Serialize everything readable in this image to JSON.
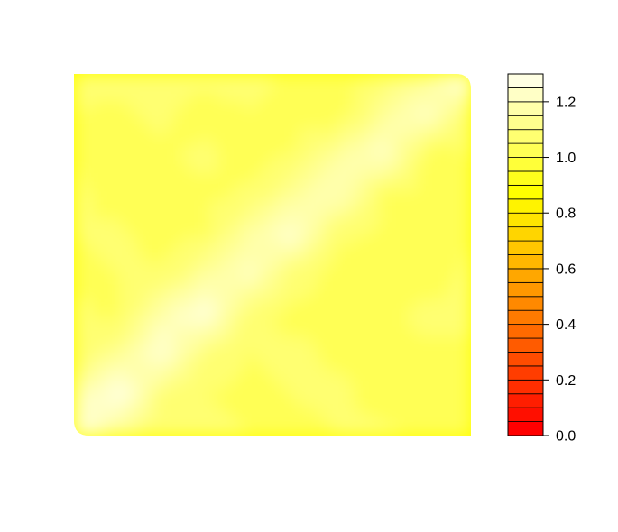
{
  "chart_data": {
    "type": "heatmap",
    "plot_style": "filled-contour",
    "title": "",
    "xlabel": "",
    "ylabel": "",
    "axes_shown": false,
    "grid": false,
    "legend": "right",
    "field": {
      "description_rows": "rows listed top to bottom, columns left to right",
      "z": [
        [
          1.06,
          1.07,
          1.05,
          1.07,
          1.06,
          1.04,
          1.03,
          1.05,
          1.12,
          1.3
        ],
        [
          1.05,
          1.04,
          1.06,
          1.03,
          1.05,
          1.04,
          1.02,
          1.14,
          1.23,
          1.06
        ],
        [
          1.04,
          1.05,
          1.04,
          1.06,
          1.03,
          1.05,
          1.15,
          1.22,
          1.03,
          1.05
        ],
        [
          1.06,
          1.03,
          1.05,
          1.04,
          1.06,
          1.14,
          1.2,
          1.05,
          1.04,
          1.03
        ],
        [
          1.05,
          1.06,
          1.03,
          1.05,
          1.16,
          1.24,
          1.06,
          1.04,
          1.05,
          1.04
        ],
        [
          1.04,
          1.05,
          1.06,
          1.15,
          1.21,
          1.07,
          1.03,
          1.05,
          1.03,
          1.06
        ],
        [
          1.06,
          1.04,
          1.18,
          1.26,
          1.06,
          1.04,
          1.05,
          1.04,
          1.06,
          1.05
        ],
        [
          1.05,
          1.14,
          1.25,
          1.07,
          1.05,
          1.06,
          1.04,
          1.05,
          1.04,
          1.05
        ],
        [
          1.17,
          1.28,
          1.08,
          1.05,
          1.04,
          1.05,
          1.06,
          1.03,
          1.05,
          1.04
        ],
        [
          1.3,
          1.12,
          1.05,
          1.06,
          1.05,
          1.04,
          1.05,
          1.06,
          1.04,
          1.05
        ]
      ]
    },
    "colorbar": {
      "zlim": [
        0.0,
        1.3
      ],
      "levels": 26,
      "ticks": [
        0.0,
        0.2,
        0.4,
        0.6,
        0.8,
        1.0,
        1.2
      ],
      "tick_labels": [
        "0.0",
        "0.2",
        "0.4",
        "0.6",
        "0.8",
        "1.0",
        "1.2"
      ],
      "colors": [
        "#FF0000",
        "#FF0F00",
        "#FF1E00",
        "#FF2E00",
        "#FF3D00",
        "#FF4C00",
        "#FF5B00",
        "#FF6A00",
        "#FF7A00",
        "#FF8900",
        "#FF9800",
        "#FFA700",
        "#FFB700",
        "#FFC600",
        "#FFD500",
        "#FFE400",
        "#FFF300",
        "#FFFF00",
        "#FFFF1C",
        "#FFFF39",
        "#FFFF55",
        "#FFFF71",
        "#FFFF8E",
        "#FFFFAA",
        "#FFFFC6",
        "#FFFFE3"
      ]
    }
  }
}
